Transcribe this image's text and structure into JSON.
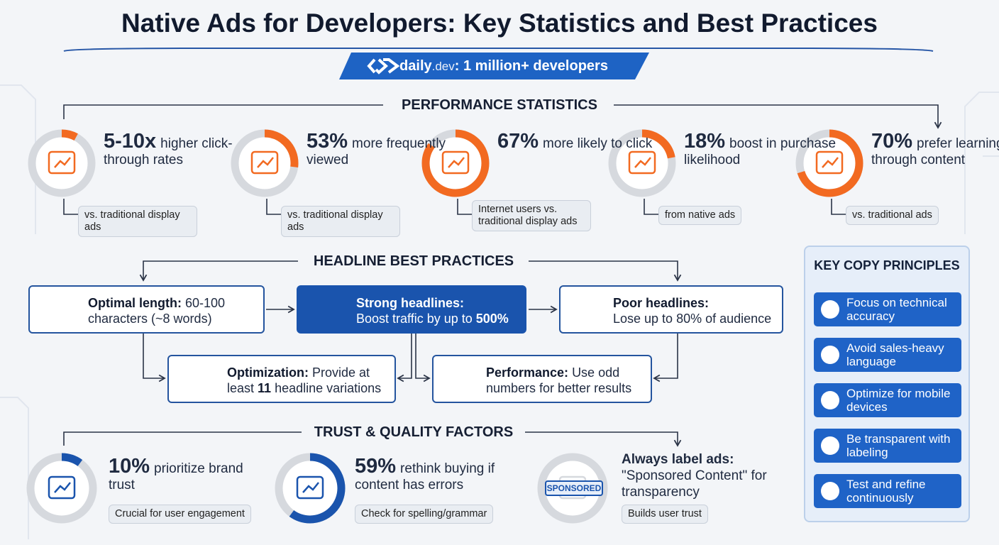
{
  "header": {
    "title": "Native Ads for Developers: Key Statistics and Best Practices",
    "brand": "daily",
    "brand_suffix": ".dev",
    "tagline": ": 1 million+ developers"
  },
  "performance": {
    "heading": "PERFORMANCE STATISTICS",
    "stats": [
      {
        "value": "5-10x",
        "text": "higher click-through rates",
        "note": "vs. traditional display ads"
      },
      {
        "value": "53%",
        "text": "more frequently viewed",
        "note": "vs. traditional display ads"
      },
      {
        "value": "67%",
        "text": "more likely to click",
        "note": "Internet users vs. traditional display ads"
      },
      {
        "value": "18%",
        "text": "boost in purchase likelihood",
        "note": "from native ads"
      },
      {
        "value": "70%",
        "text": "prefer learning through content",
        "note": "vs. traditional ads"
      }
    ]
  },
  "headlines": {
    "heading": "HEADLINE BEST PRACTICES",
    "optimal": {
      "label": "Optimal length:",
      "text": "60-100 characters (~8 words)"
    },
    "strong": {
      "label": "Strong headlines:",
      "text": "Boost traffic by up to ",
      "emphasis": "500%"
    },
    "poor": {
      "label": "Poor headlines:",
      "text": "Lose up to 80% of audience"
    },
    "optimization": {
      "label": "Optimization:",
      "text": "Provide at least ",
      "emphasis": "11",
      "text_end": " headline variations"
    },
    "performance": {
      "label": "Performance:",
      "text": "Use odd numbers for better results"
    }
  },
  "principles": {
    "heading": "KEY COPY PRINCIPLES",
    "items": [
      "Focus on technical accuracy",
      "Avoid sales-heavy language",
      "Optimize for mobile devices",
      "Be transparent with labeling",
      "Test and refine continuously"
    ]
  },
  "trust": {
    "heading": "TRUST & QUALITY FACTORS",
    "items": [
      {
        "value": "10%",
        "text": "prioritize brand trust",
        "note": "Crucial for user engagement"
      },
      {
        "value": "59%",
        "text": "rethink buying if content has errors",
        "note": "Check for spelling/grammar"
      },
      {
        "label": "Always label ads:",
        "text": "\"Sponsored Content\" for transparency",
        "note": "Builds user trust",
        "badge": "SPONSORED"
      }
    ]
  }
}
